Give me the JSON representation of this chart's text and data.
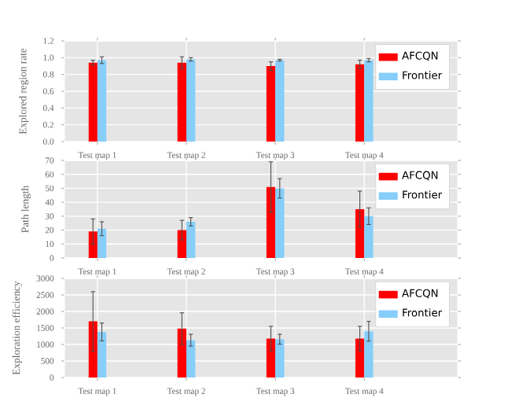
{
  "chart_data": [
    {
      "type": "bar",
      "ylabel": "Explored region rate",
      "categories": [
        "Test map 1",
        "Test map 2",
        "Test map 3",
        "Test map 4"
      ],
      "series": [
        {
          "name": "AFCQN",
          "color": "#ff0000",
          "values": [
            0.94,
            0.94,
            0.9,
            0.92
          ],
          "errors": [
            0.03,
            0.07,
            0.05,
            0.05
          ]
        },
        {
          "name": "Frontier",
          "color": "#87cefa",
          "values": [
            0.97,
            0.98,
            0.97,
            0.97
          ],
          "errors": [
            0.04,
            0.02,
            0.01,
            0.02
          ]
        }
      ],
      "ylim": [
        0,
        1.2
      ],
      "yticks": [
        {
          "value": 0,
          "label": "0.0"
        },
        0.2,
        0.4,
        0.6,
        0.8,
        {
          "value": 1,
          "label": "1.0"
        },
        1.2
      ],
      "grid": true,
      "legend": "top right"
    },
    {
      "type": "bar",
      "ylabel": "Path length",
      "categories": [
        "Test map 1",
        "Test map 2",
        "Test map 3",
        "Test map 4"
      ],
      "series": [
        {
          "name": "AFCQN",
          "color": "#ff0000",
          "values": [
            19,
            20,
            51,
            35
          ],
          "errors": [
            9,
            7,
            18,
            13
          ]
        },
        {
          "name": "Frontier",
          "color": "#87cefa",
          "values": [
            21,
            26,
            50,
            30
          ],
          "errors": [
            5,
            3,
            7,
            6
          ]
        }
      ],
      "ylim": [
        0,
        70
      ],
      "yticks": [
        0,
        10,
        20,
        30,
        40,
        50,
        60,
        70
      ],
      "grid": true,
      "legend": "top right"
    },
    {
      "type": "bar",
      "ylabel": "Exploration efficiency",
      "categories": [
        "Test map 1",
        "Test map 2",
        "Test map 3",
        "Test map 4"
      ],
      "series": [
        {
          "name": "AFCQN",
          "color": "#ff0000",
          "values": [
            1700,
            1480,
            1180,
            1180
          ],
          "errors": [
            900,
            480,
            370,
            370
          ]
        },
        {
          "name": "Frontier",
          "color": "#87cefa",
          "values": [
            1380,
            1130,
            1160,
            1400
          ],
          "errors": [
            270,
            180,
            150,
            300
          ]
        }
      ],
      "ylim": [
        0,
        3000
      ],
      "yticks": [
        0,
        500,
        1000,
        1500,
        2000,
        2500,
        3000
      ],
      "grid": true,
      "legend": "top right"
    }
  ]
}
